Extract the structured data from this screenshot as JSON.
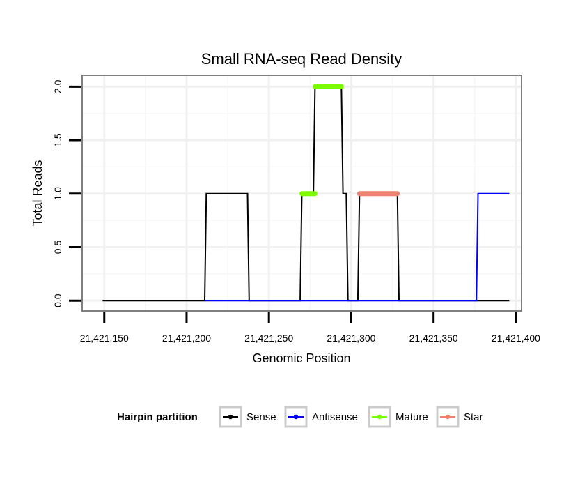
{
  "chart_data": {
    "type": "line",
    "title": "Small RNA-seq Read Density",
    "xlabel": "Genomic Position",
    "ylabel": "Total Reads",
    "xlim": [
      21421137,
      21421403
    ],
    "ylim": [
      -0.09,
      2.1
    ],
    "x_ticks": [
      21421150,
      21421200,
      21421250,
      21421300,
      21421350,
      21421400
    ],
    "x_tick_labels": [
      "21,421,150",
      "21,421,200",
      "21,421,250",
      "21,421,300",
      "21,421,350",
      "21,421,400"
    ],
    "y_ticks": [
      0,
      0.5,
      1,
      1.5,
      2
    ],
    "y_tick_labels": [
      "0.0",
      "0.5",
      "1.0",
      "1.5",
      "2.0"
    ],
    "grid": true,
    "legend": {
      "title": "Hairpin partition",
      "position": "bottom",
      "entries": [
        {
          "name": "Sense",
          "color": "#000000"
        },
        {
          "name": "Antisense",
          "color": "#0000ff"
        },
        {
          "name": "Mature",
          "color": "#7cfc00"
        },
        {
          "name": "Star",
          "color": "#f08070"
        }
      ]
    },
    "series": [
      {
        "name": "Sense",
        "color": "#000000",
        "x": [
          21421149,
          21421211,
          21421212,
          21421237,
          21421238,
          21421269,
          21421270,
          21421277,
          21421278,
          21421294,
          21421295,
          21421297,
          21421298,
          21421304,
          21421305,
          21421328,
          21421329,
          21421396
        ],
        "y": [
          0,
          0,
          1,
          1,
          0,
          0,
          1,
          1,
          2,
          2,
          1,
          1,
          0,
          0,
          1,
          1,
          0,
          0
        ]
      },
      {
        "name": "Antisense",
        "color": "#0000ff",
        "x": [
          21421211,
          21421376,
          21421377,
          21421396
        ],
        "y": [
          0,
          0,
          1,
          1
        ]
      },
      {
        "name": "Mature",
        "color": "#7cfc00",
        "segments": [
          {
            "x": [
              21421270,
              21421278
            ],
            "y": [
              1,
              1
            ]
          },
          {
            "x": [
              21421278,
              21421294
            ],
            "y": [
              2,
              2
            ]
          }
        ]
      },
      {
        "name": "Star",
        "color": "#f08070",
        "segments": [
          {
            "x": [
              21421305,
              21421328
            ],
            "y": [
              1,
              1
            ]
          }
        ]
      }
    ]
  }
}
